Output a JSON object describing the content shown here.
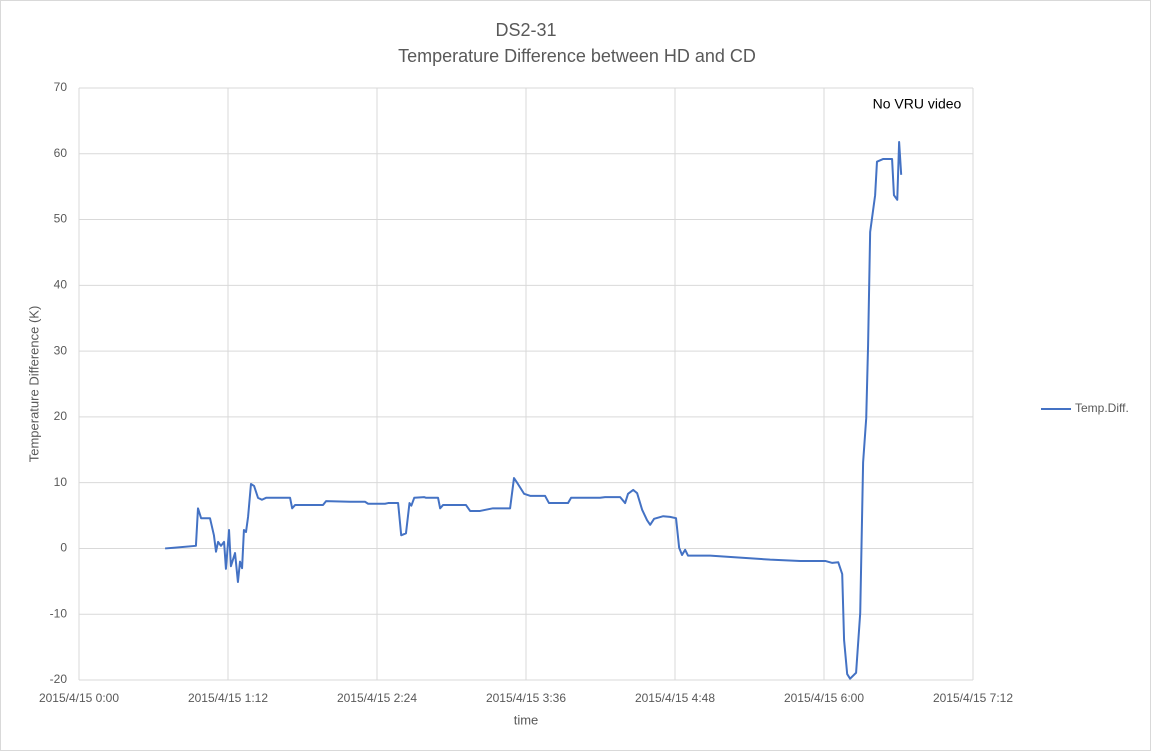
{
  "chart_data": {
    "type": "line",
    "title": "DS2-31",
    "subtitle": "Temperature Difference between HD and CD",
    "x_label": "time",
    "y_label": "Temperature Difference (K)",
    "annotation": "No VRU video",
    "xlim": [
      0,
      432
    ],
    "xticks": [
      {
        "value": 0,
        "label": "2015/4/15 0:00"
      },
      {
        "value": 72,
        "label": "2015/4/15 1:12"
      },
      {
        "value": 144,
        "label": "2015/4/15 2:24"
      },
      {
        "value": 216,
        "label": "2015/4/15 3:36"
      },
      {
        "value": 288,
        "label": "2015/4/15 4:48"
      },
      {
        "value": 360,
        "label": "2015/4/15 6:00"
      },
      {
        "value": 432,
        "label": "2015/4/15 7:12"
      }
    ],
    "ylim": [
      -20,
      70
    ],
    "yticks": [
      -20,
      -10,
      0,
      10,
      20,
      30,
      40,
      50,
      60,
      70
    ],
    "grid": true,
    "legend": "right",
    "series": [
      {
        "name": "Temp.Diff.",
        "color": "#4472c4",
        "x": [
          41.6,
          45.9,
          56.5,
          57.5,
          59,
          63.3,
          65.2,
          66.2,
          67.2,
          68.6,
          70.1,
          71,
          72.5,
          73.4,
          75.4,
          76.8,
          77.8,
          78.8,
          79.7,
          80.7,
          81.7,
          83.1,
          84.6,
          86.5,
          88.4,
          90.4,
          102,
          103,
          104.4,
          117.9,
          119.4,
          131,
          138.2,
          139.7,
          147.9,
          149.4,
          154.2,
          155.7,
          158,
          159.7,
          160.6,
          162,
          166.9,
          167.7,
          173.5,
          174.5,
          175.9,
          187,
          189,
          193.8,
          200,
          208.3,
          210.2,
          212.1,
          215.1,
          218,
          225.2,
          227.1,
          236.3,
          237.8,
          251.8,
          254.2,
          261.5,
          263.9,
          265.3,
          267.8,
          269.7,
          272.1,
          274.5,
          276,
          277.9,
          282.3,
          285.6,
          288.5,
          290,
          291.4,
          292.9,
          294.3,
          305,
          319.5,
          334,
          348.5,
          360.6,
          364,
          366.9,
          368.8,
          369.7,
          371.2,
          372.6,
          375.5,
          377.5,
          378.9,
          380.4,
          381.3,
          382.3,
          384.7,
          385.6,
          388.5,
          392.9,
          393.8,
          395.4,
          396.3,
          397.3
        ],
        "values": [
          0,
          0.1,
          0.4,
          6.1,
          4.6,
          4.6,
          2,
          -0.5,
          1,
          0.4,
          1,
          -3.1,
          2.8,
          -2.7,
          -0.7,
          -5.1,
          -2,
          -3,
          2.8,
          2.5,
          4.8,
          9.8,
          9.5,
          7.7,
          7.4,
          7.7,
          7.7,
          6.1,
          6.6,
          6.6,
          7.2,
          7.1,
          7.1,
          6.8,
          6.8,
          6.9,
          6.9,
          2,
          2.3,
          6.9,
          6.5,
          7.7,
          7.8,
          7.7,
          7.7,
          6.1,
          6.6,
          6.6,
          5.7,
          5.7,
          6.1,
          6.1,
          10.7,
          9.8,
          8.3,
          8,
          8,
          6.9,
          6.9,
          7.7,
          7.7,
          7.8,
          7.8,
          6.9,
          8.3,
          8.9,
          8.4,
          5.9,
          4.3,
          3.6,
          4.5,
          4.9,
          4.8,
          4.6,
          0.1,
          -1,
          -0.2,
          -1.1,
          -1.1,
          -1.4,
          -1.7,
          -1.9,
          -1.9,
          -2.2,
          -2.1,
          -3.9,
          -13.9,
          -19.1,
          -19.8,
          -18.9,
          -9.8,
          13.1,
          19.8,
          30.9,
          48.1,
          53.7,
          58.8,
          59.2,
          59.2,
          53.7,
          53,
          61.8,
          56.8
        ]
      }
    ]
  }
}
